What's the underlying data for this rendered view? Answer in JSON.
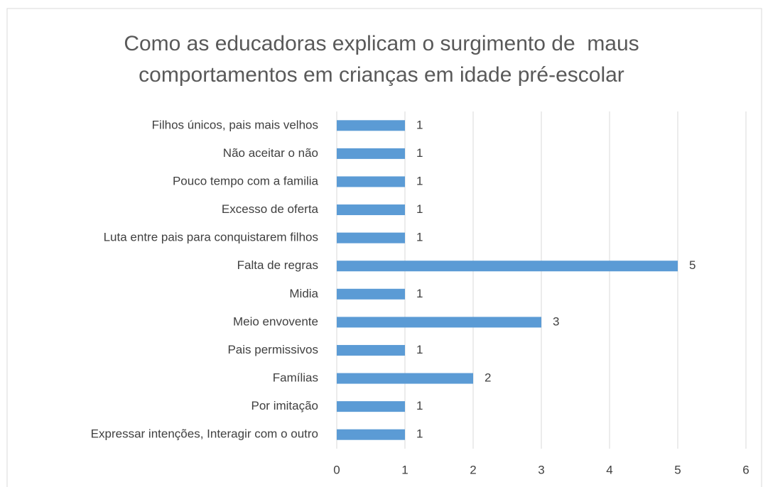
{
  "chart_data": {
    "type": "barh",
    "title": "Como as educadoras explicam o surgimento de  maus comportamentos em crianças em idade pré-escolar",
    "categories": [
      "Filhos únicos, pais mais velhos",
      "Não aceitar o não",
      "Pouco tempo com a familia",
      "Excesso de oferta",
      "Luta entre pais para conquistarem filhos",
      "Falta de regras",
      "Midia",
      "Meio envovente",
      "Pais permissivos",
      "Famílias",
      "Por imitação",
      "Expressar intenções, Interagir com o outro"
    ],
    "values": [
      1,
      1,
      1,
      1,
      1,
      5,
      1,
      3,
      1,
      2,
      1,
      1
    ],
    "color": "#5b9bd5",
    "xlim": [
      0,
      6
    ],
    "xticks": [
      0,
      1,
      2,
      3,
      4,
      5,
      6
    ],
    "grid": true
  }
}
